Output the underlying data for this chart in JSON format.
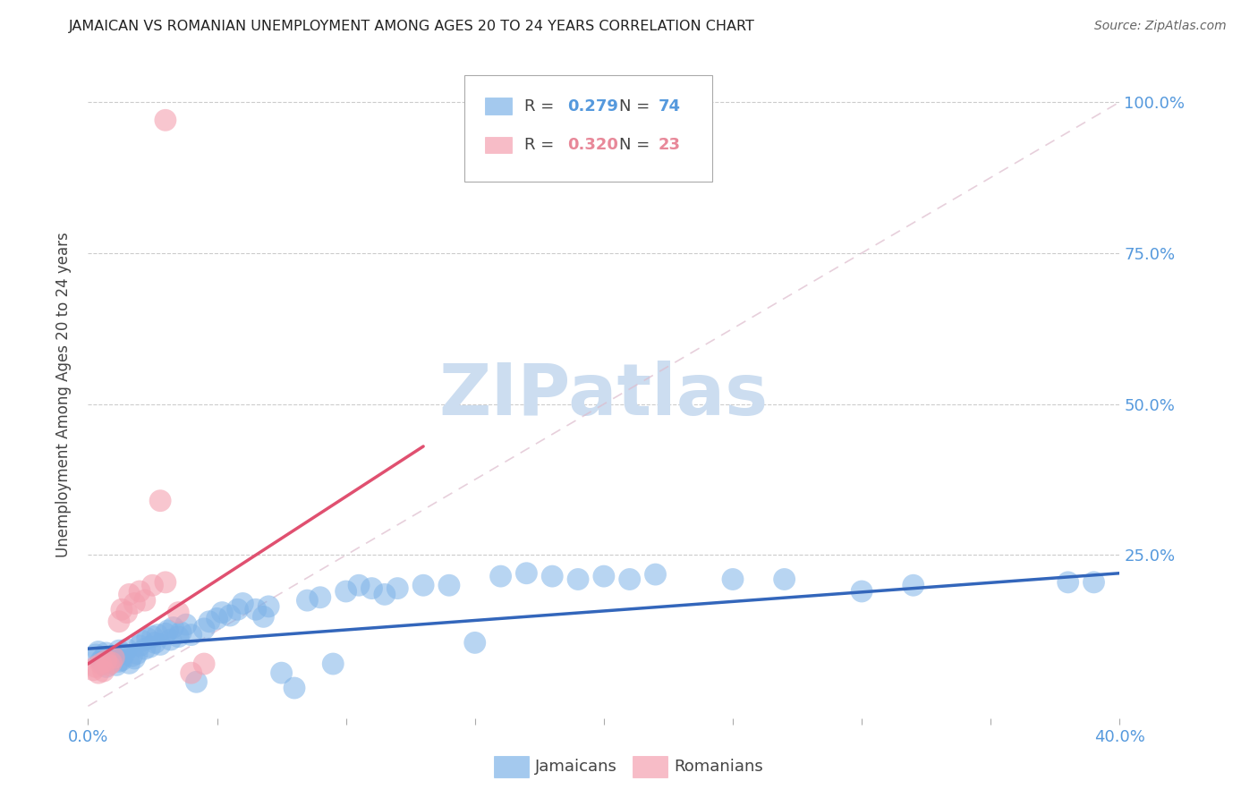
{
  "title": "JAMAICAN VS ROMANIAN UNEMPLOYMENT AMONG AGES 20 TO 24 YEARS CORRELATION CHART",
  "source": "Source: ZipAtlas.com",
  "ylabel": "Unemployment Among Ages 20 to 24 years",
  "xlim": [
    0.0,
    0.4
  ],
  "ylim": [
    -0.02,
    1.05
  ],
  "xticks": [
    0.0,
    0.05,
    0.1,
    0.15,
    0.2,
    0.25,
    0.3,
    0.35,
    0.4
  ],
  "xtick_labels_show": [
    "0.0%",
    "",
    "",
    "",
    "",
    "",
    "",
    "",
    "40.0%"
  ],
  "yticks": [
    0.0,
    0.25,
    0.5,
    0.75,
    1.0
  ],
  "ytick_labels": [
    "",
    "25.0%",
    "50.0%",
    "75.0%",
    "100.0%"
  ],
  "blue_color": "#7EB3E8",
  "pink_color": "#F4A0B0",
  "blue_trend_color": "#3366BB",
  "pink_trend_color": "#E05070",
  "axis_color": "#5599DD",
  "watermark_text": "ZIPatlas",
  "watermark_color": "#CCDDF0",
  "legend_label1": "R = 0.279",
  "legend_n1": "N = 74",
  "legend_label2": "R = 0.320",
  "legend_n2": "N = 23",
  "jamaicans_x": [
    0.003,
    0.004,
    0.005,
    0.006,
    0.006,
    0.007,
    0.007,
    0.008,
    0.009,
    0.01,
    0.011,
    0.012,
    0.012,
    0.013,
    0.014,
    0.015,
    0.016,
    0.017,
    0.018,
    0.019,
    0.02,
    0.021,
    0.022,
    0.023,
    0.024,
    0.025,
    0.026,
    0.027,
    0.028,
    0.03,
    0.031,
    0.032,
    0.033,
    0.035,
    0.036,
    0.038,
    0.04,
    0.042,
    0.045,
    0.047,
    0.05,
    0.052,
    0.055,
    0.058,
    0.06,
    0.065,
    0.068,
    0.07,
    0.075,
    0.08,
    0.085,
    0.09,
    0.095,
    0.1,
    0.105,
    0.11,
    0.115,
    0.12,
    0.13,
    0.14,
    0.15,
    0.16,
    0.17,
    0.18,
    0.19,
    0.2,
    0.21,
    0.22,
    0.25,
    0.27,
    0.3,
    0.32,
    0.38,
    0.39
  ],
  "jamaicans_y": [
    0.085,
    0.09,
    0.075,
    0.08,
    0.07,
    0.088,
    0.065,
    0.078,
    0.072,
    0.082,
    0.068,
    0.074,
    0.092,
    0.076,
    0.086,
    0.094,
    0.071,
    0.083,
    0.079,
    0.087,
    0.1,
    0.108,
    0.095,
    0.112,
    0.098,
    0.115,
    0.105,
    0.118,
    0.102,
    0.12,
    0.125,
    0.11,
    0.13,
    0.115,
    0.122,
    0.135,
    0.118,
    0.04,
    0.128,
    0.14,
    0.145,
    0.155,
    0.15,
    0.16,
    0.17,
    0.16,
    0.148,
    0.165,
    0.055,
    0.03,
    0.175,
    0.18,
    0.07,
    0.19,
    0.2,
    0.195,
    0.185,
    0.195,
    0.2,
    0.2,
    0.105,
    0.215,
    0.22,
    0.215,
    0.21,
    0.215,
    0.21,
    0.218,
    0.21,
    0.21,
    0.19,
    0.2,
    0.205,
    0.205
  ],
  "romanians_x": [
    0.002,
    0.003,
    0.004,
    0.005,
    0.006,
    0.007,
    0.008,
    0.009,
    0.01,
    0.012,
    0.013,
    0.015,
    0.016,
    0.018,
    0.02,
    0.022,
    0.025,
    0.028,
    0.03,
    0.035,
    0.04,
    0.045,
    0.03
  ],
  "romanians_y": [
    0.06,
    0.065,
    0.055,
    0.07,
    0.058,
    0.075,
    0.068,
    0.072,
    0.08,
    0.14,
    0.16,
    0.155,
    0.185,
    0.17,
    0.19,
    0.175,
    0.2,
    0.34,
    0.205,
    0.155,
    0.055,
    0.07,
    0.97
  ]
}
